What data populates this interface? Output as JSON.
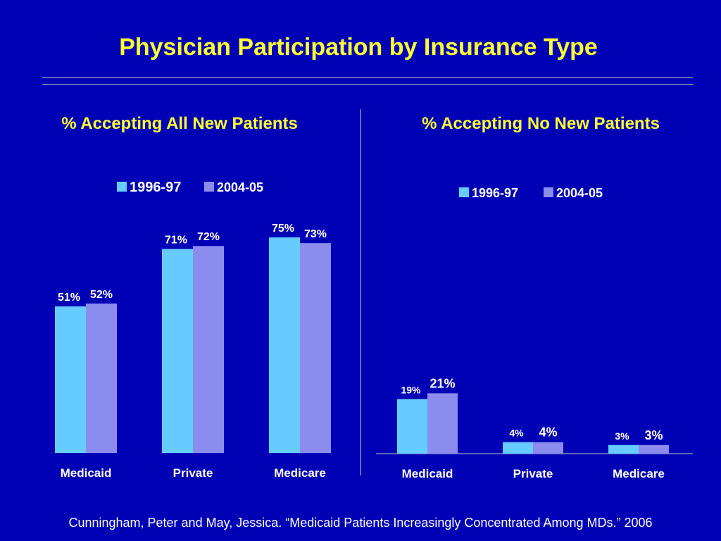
{
  "title": "Physician Participation by Insurance Type",
  "footer": "Cunningham, Peter and May, Jessica.  “Medicaid Patients Increasingly Concentrated Among MDs.” 2006",
  "colors": {
    "background": "#0000b4",
    "title": "#ffff33",
    "series_1996": "#66ccff",
    "series_2004": "#8c8cee",
    "text": "#ffffff"
  },
  "chart_data": [
    {
      "type": "bar",
      "title": "% Accepting All New Patients",
      "categories": [
        "Medicaid",
        "Private",
        "Medicare"
      ],
      "series": [
        {
          "name": "1996-97",
          "values": [
            51,
            71,
            75
          ],
          "labels": [
            "51%",
            "71%",
            "75%"
          ]
        },
        {
          "name": "2004-05",
          "values": [
            52,
            72,
            73
          ],
          "labels": [
            "52%",
            "72%",
            "73%"
          ]
        }
      ],
      "ylim": [
        0,
        100
      ],
      "legend": "top-center",
      "grid": false
    },
    {
      "type": "bar",
      "title": "% Accepting No New Patients",
      "categories": [
        "Medicaid",
        "Private",
        "Medicare"
      ],
      "series": [
        {
          "name": "1996-97",
          "values": [
            19,
            4,
            3
          ],
          "labels": [
            "19%",
            "4%",
            "3%"
          ]
        },
        {
          "name": "2004-05",
          "values": [
            21,
            4,
            3
          ],
          "labels": [
            "21%",
            "4%",
            "3%"
          ]
        }
      ],
      "ylim": [
        0,
        100
      ],
      "legend": "top-center",
      "grid": false
    }
  ]
}
